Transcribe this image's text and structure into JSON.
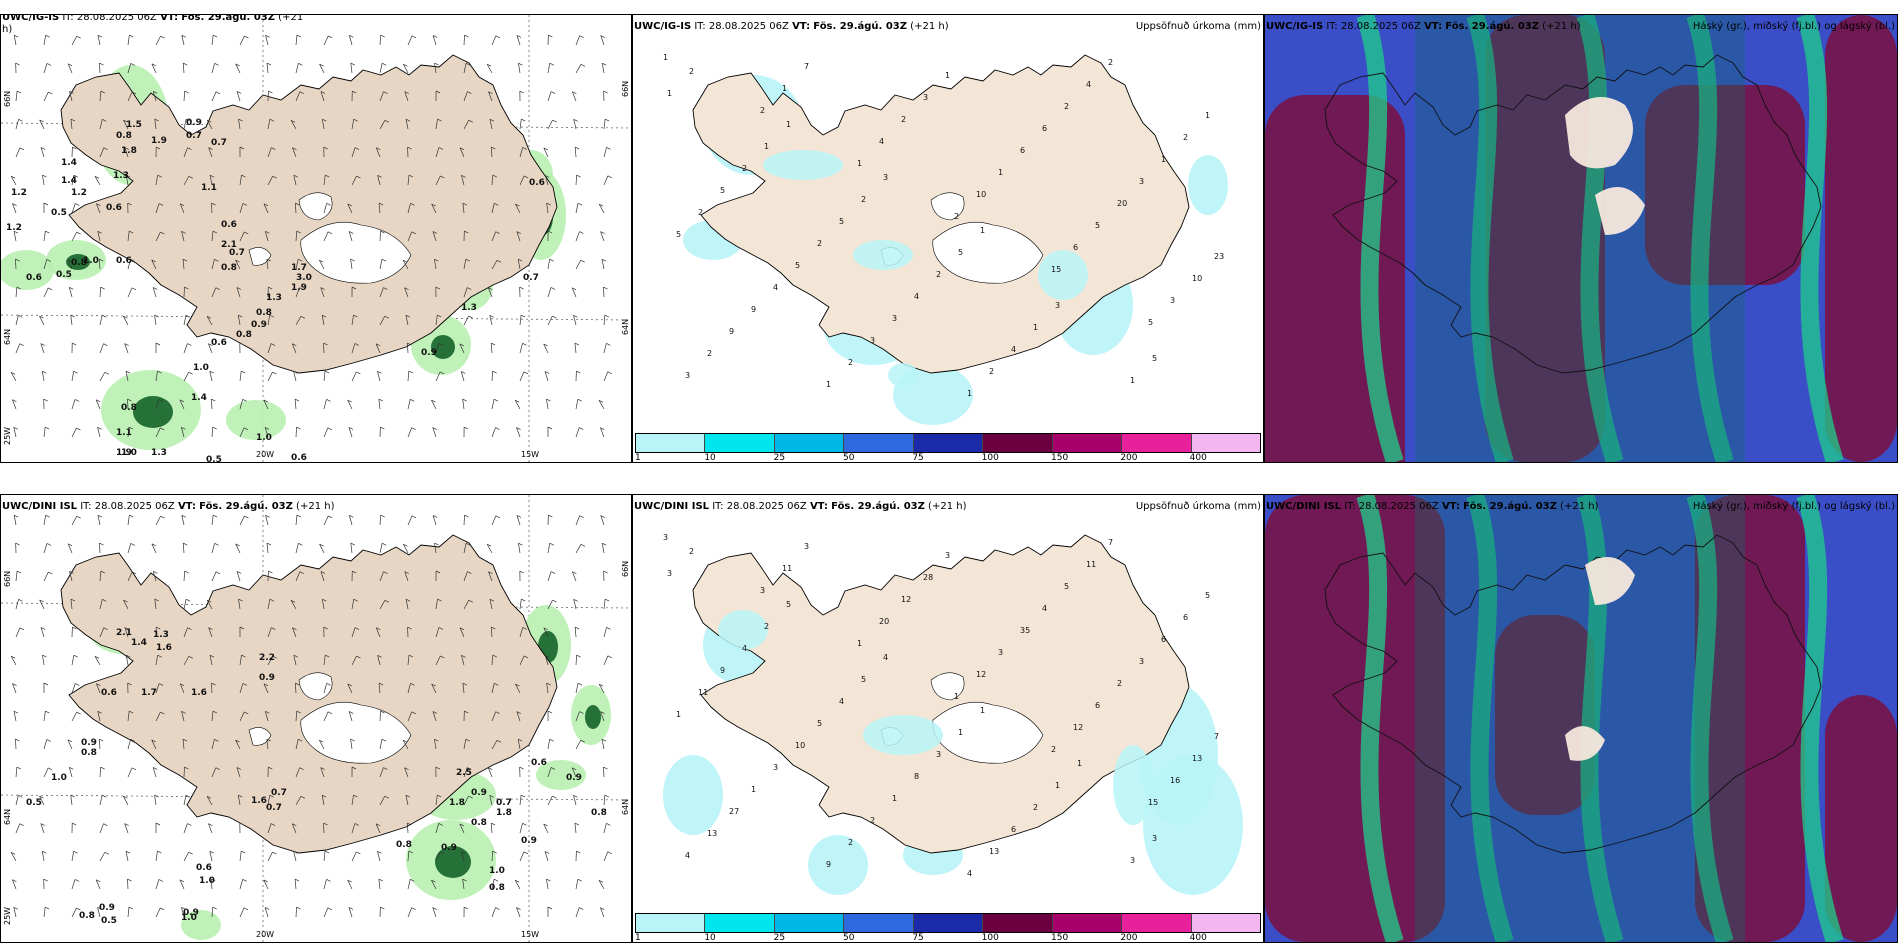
{
  "panels": [
    {
      "id": "ig-wind",
      "model": "UWC/IG-IS",
      "it_label": "IT:",
      "it_value": "28.08.2025 06Z",
      "vt_label": "VT:",
      "vt_value": "Fös. 29.ágú. 03Z",
      "lead": "(+21",
      "lead_wrap": "h)",
      "right_title": "",
      "axis": {
        "lat_top": "66N",
        "lat_mid": "64N",
        "lat_bot": "25W",
        "lon_a": "20W",
        "lon_b": "15W",
        "lat_right_top": "66N",
        "lat_right_mid": "64N"
      },
      "labels": [
        "0.7",
        "1.5",
        "0.8",
        "1.9",
        "1.8",
        "0.9",
        "0.7",
        "1.2",
        "1.4",
        "1.4",
        "1.2",
        "1.3",
        "1.1",
        "0.6",
        "0.5",
        "0.6",
        "1.2",
        "0.6",
        "0.8",
        "1.0",
        "0.6",
        "0.5",
        "2.1",
        "0.7",
        "0.8",
        "1.7",
        "3.0",
        "1.9",
        "1.3",
        "0.8",
        "0.9",
        "0.6",
        "0.8",
        "0.6",
        "0.7",
        "1.3",
        "0.9",
        "1.0",
        "0.8",
        "1.1",
        "1.9",
        "1.3",
        "1.0",
        "0.5",
        "0.6",
        "1.0",
        "1.4"
      ]
    },
    {
      "id": "ig-precip",
      "model": "UWC/IG-IS",
      "it_label": "IT:",
      "it_value": "28.08.2025 06Z",
      "vt_label": "VT:",
      "vt_value": "Fös. 29.ágú. 03Z",
      "lead": "(+21 h)",
      "right_title": "Uppsöfnuð úrkoma (mm)",
      "labels": [
        "1",
        "2",
        "1",
        "2",
        "15",
        "5",
        "3",
        "1",
        "4",
        "10",
        "6",
        "3",
        "2",
        "7",
        "2",
        "1",
        "5",
        "10",
        "9",
        "1",
        "3",
        "6",
        "20",
        "23",
        "9",
        "2",
        "1",
        "6",
        "3",
        "5",
        "4",
        "3",
        "1",
        "2",
        "1",
        "2",
        "5",
        "3",
        "2",
        "4",
        "2",
        "5",
        "2",
        "4",
        "4",
        "2",
        "1",
        "2",
        "5",
        "2",
        "1",
        "1",
        "1",
        "1",
        "2",
        "5",
        "3",
        "5",
        "2",
        "1",
        "3",
        "1"
      ],
      "colorbar": {
        "colors": [
          "#b8f4f8",
          "#00e5ee",
          "#00b8e8",
          "#2f69e0",
          "#1a2aa8",
          "#6a0040",
          "#a8006a",
          "#e8209c",
          "#f4b6f0"
        ],
        "ticks": [
          "1",
          "10",
          "25",
          "50",
          "75",
          "100",
          "150",
          "200",
          "400"
        ]
      }
    },
    {
      "id": "ig-cloud",
      "model": "UWC/IG-IS",
      "it_label": "IT:",
      "it_value": "28.08.2025 06Z",
      "vt_label": "VT:",
      "vt_value": "Fös. 29.ágú. 03Z",
      "lead": "(+21 h)",
      "right_title": "Háský (gr.), miðský (fj.bl.) og lágský (bl.)"
    },
    {
      "id": "dini-wind",
      "model": "UWC/DINI ISL",
      "it_label": "IT:",
      "it_value": "28.08.2025 06Z",
      "vt_label": "VT:",
      "vt_value": "Fös. 29.ágú. 03Z",
      "lead": "(+21 h)",
      "right_title": "",
      "axis": {
        "lat_top": "66N",
        "lat_mid": "64N",
        "lat_bot": "25W",
        "lon_a": "20W",
        "lon_b": "15W",
        "lat_right_top": "66N",
        "lat_right_mid": "64N"
      },
      "labels": [
        "2.1",
        "1.3",
        "1.4",
        "1.6",
        "0.6",
        "1.7",
        "1.6",
        "2.2",
        "0.9",
        "0.9",
        "0.8",
        "1.0",
        "0.5",
        "0.7",
        "1.6",
        "0.7",
        "0.9",
        "1.8",
        "0.8",
        "0.9",
        "0.6",
        "0.9",
        "0.7",
        "0.8",
        "0.9",
        "0.8",
        "1.0",
        "0.8",
        "0.6",
        "1.0",
        "0.9",
        "0.8",
        "0.5",
        "1.0",
        "0.9",
        "1.8",
        "2.5"
      ]
    },
    {
      "id": "dini-precip",
      "model": "UWC/DINI ISL",
      "it_label": "IT:",
      "it_value": "28.08.2025 06Z",
      "vt_label": "VT:",
      "vt_value": "Fös. 29.ágú. 03Z",
      "lead": "(+21 h)",
      "right_title": "Uppsöfnuð úrkoma (mm)",
      "labels": [
        "3",
        "3",
        "1",
        "1",
        "2",
        "15",
        "4",
        "11",
        "20",
        "12",
        "12",
        "16",
        "13",
        "3",
        "12",
        "3",
        "6",
        "13",
        "27",
        "9",
        "28",
        "35",
        "2",
        "7",
        "1",
        "2",
        "3",
        "4",
        "3",
        "1",
        "3",
        "2",
        "4",
        "5",
        "6",
        "11",
        "10",
        "1",
        "13",
        "11",
        "6",
        "9",
        "5",
        "8",
        "6",
        "7",
        "5",
        "4",
        "4",
        "3",
        "2",
        "3",
        "3",
        "2",
        "5",
        "1",
        "1",
        "3",
        "2",
        "5",
        "4",
        "1",
        "1"
      ],
      "colorbar": {
        "colors": [
          "#b8f4f8",
          "#00e5ee",
          "#00b8e8",
          "#2f69e0",
          "#1a2aa8",
          "#6a0040",
          "#a8006a",
          "#e8209c",
          "#f4b6f0"
        ],
        "ticks": [
          "1",
          "10",
          "25",
          "50",
          "75",
          "100",
          "150",
          "200",
          "400"
        ]
      }
    },
    {
      "id": "dini-cloud",
      "model": "UWC/DINI ISL",
      "it_label": "IT:",
      "it_value": "28.08.2025 06Z",
      "vt_label": "VT:",
      "vt_value": "Fös. 29.ágú. 03Z",
      "lead": "(+21 h)",
      "right_title": "Háský (gr.), miðský (fj.bl.) og lágský (bl.)"
    }
  ],
  "colors": {
    "land": "#f4e6d6",
    "land_wind": "#e8d6c4",
    "cloud_high": "#1fcf8a",
    "cloud_mid": "#7a1040",
    "cloud_low": "#3a4ec8",
    "precip_light": "#b8f4f8",
    "wind_green_light": "#b8f0b0",
    "wind_green_dark": "#0a5a20"
  }
}
